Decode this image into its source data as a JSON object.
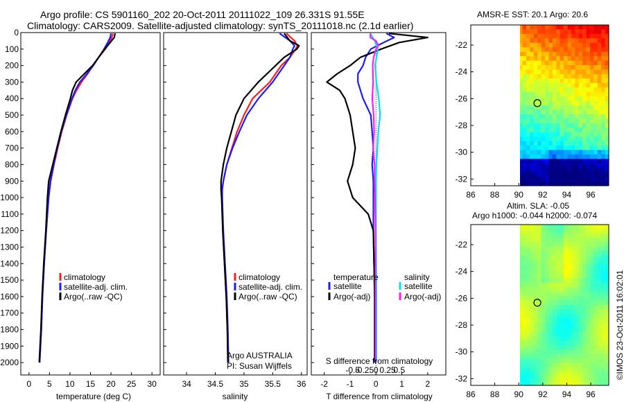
{
  "title": {
    "line1": "Argo profile: CS 5901160_202 20-Oct-2011 20111022_109 26.331S 91.55E",
    "line2": "Climatology: CARS2009. Satellite-adjusted climatology: synTS_20111018.nc (2.1d earlier)"
  },
  "colors": {
    "climatology": "#ff1a1a",
    "satellite": "#1a1aff",
    "argo": "#000000",
    "cyan": "#00e0f0",
    "magenta": "#ff1aff"
  },
  "chart_data": [
    {
      "type": "line",
      "title": "",
      "xlabel": "temperature (deg C)",
      "ylabel": "",
      "xlim": [
        -2,
        32
      ],
      "ylim": [
        0,
        2075
      ],
      "x_ticks": [
        "0",
        "5",
        "10",
        "15",
        "20",
        "25",
        "30"
      ],
      "y_ticks": [
        "0",
        "100",
        "200",
        "300",
        "400",
        "500",
        "600",
        "700",
        "800",
        "900",
        "1000",
        "1100",
        "1200",
        "1300",
        "1400",
        "1500",
        "1600",
        "1700",
        "1800",
        "1900",
        "2000"
      ],
      "legend": [
        "climatology",
        "satellite-adj. clim.",
        "Argo(..raw -QC)"
      ],
      "series": [
        {
          "name": "climatology",
          "depth": [
            5,
            30,
            60,
            100,
            150,
            200,
            250,
            300,
            350,
            400,
            500,
            600,
            700,
            800,
            900,
            1000,
            1200,
            1400,
            1600,
            1800,
            2000
          ],
          "values": [
            20.5,
            20.2,
            19.6,
            18.6,
            17.0,
            15.6,
            14.3,
            12.8,
            11.6,
            10.6,
            9.2,
            8.0,
            7.0,
            6.1,
            5.3,
            4.8,
            4.2,
            3.7,
            3.3,
            3.0,
            2.6
          ]
        },
        {
          "name": "satellite-adj. clim.",
          "depth": [
            5,
            30,
            60,
            100,
            150,
            200,
            250,
            300,
            350,
            400,
            500,
            600,
            700,
            800,
            900,
            1000,
            1200,
            1400,
            1600,
            1800,
            2000
          ],
          "values": [
            20.0,
            19.8,
            19.2,
            18.3,
            17.0,
            15.7,
            14.1,
            12.4,
            11.3,
            10.5,
            9.1,
            7.9,
            6.9,
            6.0,
            5.2,
            4.8,
            4.2,
            3.7,
            3.3,
            3.0,
            2.6
          ]
        },
        {
          "name": "Argo(..raw -QC)",
          "depth": [
            5,
            30,
            60,
            100,
            150,
            200,
            250,
            300,
            350,
            400,
            500,
            600,
            700,
            800,
            900,
            1000,
            1200,
            1400,
            1600,
            1800,
            2000
          ],
          "values": [
            21.0,
            20.8,
            19.8,
            18.5,
            17.0,
            15.5,
            13.5,
            11.5,
            10.6,
            10.1,
            8.9,
            7.8,
            6.8,
            5.8,
            4.8,
            4.5,
            4.1,
            3.6,
            3.2,
            2.9,
            2.5
          ]
        }
      ]
    },
    {
      "type": "line",
      "title": "",
      "xlabel": "salinity",
      "ylabel": "",
      "xlim": [
        33.6,
        36.1
      ],
      "ylim": [
        0,
        2075
      ],
      "x_ticks": [
        "34",
        "34.5",
        "35",
        "35.5",
        "36"
      ],
      "legend": [
        "climatology",
        "satellite-adj. clim.",
        "Argo(..raw -QC)"
      ],
      "annotations": [
        "Argo AUSTRALIA",
        "PI: Susan Wijffels"
      ],
      "series": [
        {
          "name": "climatology",
          "depth": [
            5,
            50,
            80,
            100,
            150,
            200,
            300,
            400,
            500,
            600,
            700,
            800,
            900,
            950,
            1000,
            1200,
            1400,
            1600,
            1800,
            2000
          ],
          "values": [
            35.74,
            35.88,
            35.93,
            35.9,
            35.8,
            35.65,
            35.45,
            35.15,
            35.0,
            34.88,
            34.79,
            34.7,
            34.64,
            34.62,
            34.62,
            34.63,
            34.66,
            34.69,
            34.71,
            34.72
          ]
        },
        {
          "name": "satellite-adj. clim.",
          "depth": [
            5,
            50,
            80,
            100,
            150,
            200,
            300,
            400,
            500,
            600,
            700,
            800,
            900,
            950,
            1000,
            1200,
            1400,
            1600,
            1800,
            2000
          ],
          "values": [
            35.62,
            35.8,
            35.88,
            35.85,
            35.8,
            35.7,
            35.5,
            35.25,
            35.05,
            34.92,
            34.8,
            34.7,
            34.64,
            34.62,
            34.62,
            34.64,
            34.67,
            34.7,
            34.72,
            34.73
          ]
        },
        {
          "name": "Argo(..raw -QC)",
          "depth": [
            5,
            50,
            80,
            100,
            150,
            200,
            300,
            400,
            500,
            600,
            700,
            800,
            900,
            950,
            1000,
            1200,
            1400,
            1600,
            1800,
            2000
          ],
          "values": [
            35.7,
            35.8,
            35.96,
            35.92,
            35.7,
            35.55,
            35.25,
            35.0,
            34.86,
            34.78,
            34.7,
            34.64,
            34.6,
            34.6,
            34.61,
            34.63,
            34.66,
            34.69,
            34.71,
            34.72
          ]
        }
      ]
    },
    {
      "type": "line",
      "title": "",
      "xlabel": "T difference from climatology",
      "xlabel_secondary": "S difference from climatology",
      "ylabel": "",
      "xlim": [
        -2.5,
        2.7
      ],
      "ylim": [
        0,
        2075
      ],
      "x_ticks": [
        "-2",
        "-1",
        "0",
        "1",
        "2"
      ],
      "x_ticks_salinity": [
        "-0.5",
        "-0.25",
        "0",
        "0.25",
        "0.5"
      ],
      "legend_groups": {
        "temperature": [
          "satellite",
          "Argo(-adj)"
        ],
        "salinity": [
          "satellite",
          "Argo(-adj)"
        ]
      },
      "series": [
        {
          "name": "temperature satellite",
          "depth": [
            5,
            30,
            60,
            100,
            150,
            200,
            250,
            300,
            400,
            500,
            600,
            700,
            800,
            900,
            1000,
            1200,
            1600,
            2000
          ],
          "values": [
            0.4,
            0.7,
            0.3,
            -0.2,
            -0.4,
            -0.5,
            -0.7,
            -0.7,
            -0.5,
            -0.2,
            -0.15,
            -0.1,
            -0.15,
            -0.1,
            -0.1,
            -0.1,
            -0.05,
            -0.05
          ]
        },
        {
          "name": "temperature Argo(-adj)",
          "depth": [
            5,
            30,
            60,
            100,
            150,
            200,
            250,
            300,
            350,
            400,
            500,
            600,
            700,
            800,
            900,
            1000,
            1050,
            1100,
            1200,
            1600,
            2000
          ],
          "values": [
            0.5,
            2.0,
            0.9,
            0.2,
            -0.6,
            -1.0,
            -1.5,
            -1.9,
            -1.4,
            -1.2,
            -1.0,
            -0.9,
            -0.8,
            -0.9,
            -1.1,
            -0.9,
            -0.6,
            -0.3,
            -0.1,
            -0.05,
            -0.05
          ]
        },
        {
          "name": "salinity satellite",
          "depth": [
            5,
            50,
            100,
            200,
            300,
            400,
            500,
            600,
            700,
            800,
            900,
            1000,
            1200,
            1600,
            2000
          ],
          "values": [
            -0.12,
            -0.03,
            0.04,
            -0.02,
            0.01,
            0.06,
            0.09,
            0.05,
            0.03,
            0.01,
            0.0,
            0.0,
            0.0,
            0.01,
            0.01
          ]
        },
        {
          "name": "salinity Argo(-adj)",
          "depth": [
            5,
            30,
            50,
            80,
            100,
            150,
            200,
            300,
            400,
            500,
            600,
            700,
            800,
            900,
            1000,
            1200,
            1600,
            2000
          ],
          "values": [
            -0.12,
            -0.12,
            0.0,
            0.05,
            0.0,
            -0.05,
            -0.07,
            -0.06,
            -0.08,
            -0.05,
            -0.04,
            -0.06,
            -0.03,
            -0.03,
            -0.02,
            -0.01,
            -0.01,
            -0.01
          ]
        }
      ]
    },
    {
      "type": "heatmap",
      "title": "AMSR-E SST: 20.1  Argo: 20.6",
      "x_ticks": [
        "86",
        "88",
        "90",
        "92",
        "94",
        "96"
      ],
      "y_ticks": [
        "-22",
        "-24",
        "-26",
        "-28",
        "-30",
        "-32"
      ],
      "xlim": [
        86,
        97.5
      ],
      "ylim": [
        -32.5,
        -20.5
      ],
      "data_lon_range": [
        90,
        97.5
      ],
      "marker": {
        "lon": 91.55,
        "lat": -26.331
      }
    },
    {
      "type": "heatmap",
      "title": "Altim. SLA: -0.05",
      "subtitle": "Argo h1000: -0.044 h2000: -0.074",
      "x_ticks": [
        "86",
        "88",
        "90",
        "92",
        "94",
        "96"
      ],
      "y_ticks": [
        "-22",
        "-24",
        "-26",
        "-28",
        "-30",
        "-32"
      ],
      "xlim": [
        86,
        97.5
      ],
      "ylim": [
        -32.5,
        -20.5
      ],
      "data_lon_range": [
        90,
        97.5
      ],
      "marker": {
        "lon": 91.55,
        "lat": -26.331
      }
    }
  ],
  "credit": "©IMOS 23-Oct-2011 16:02:01"
}
